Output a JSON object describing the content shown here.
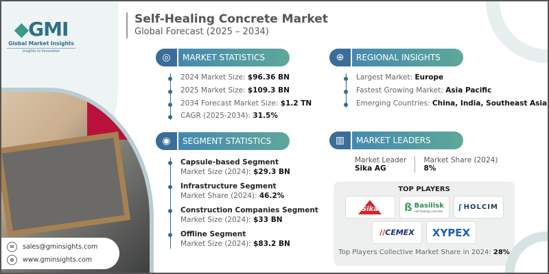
{
  "brand": {
    "logo_text": "GMI",
    "name": "Global Market Insights",
    "tagline": "Insights to Innovation"
  },
  "header": {
    "title": "Self-Healing Concrete Market",
    "subtitle": "Global Forecast (2025 – 2034)"
  },
  "market_statistics": {
    "label": "MARKET STATISTICS",
    "items": [
      {
        "label": "2024 Market Size: ",
        "value": "$96.36 BN"
      },
      {
        "label": "2025 Market Size: ",
        "value": "$109.3 BN"
      },
      {
        "label": "2034 Forecast Market Size: ",
        "value": "$1.2 TN"
      },
      {
        "label": "CAGR (2025-2034): ",
        "value": "31.5%"
      }
    ]
  },
  "regional_insights": {
    "label": "REGIONAL INSIGHTS",
    "items": [
      {
        "label": "Largest Market: ",
        "value": "Europe"
      },
      {
        "label": "Fastest Growing Market: ",
        "value": "Asia Pacific"
      },
      {
        "label": "Emerging Countries: ",
        "value": "China, India, Southeast Asia"
      }
    ]
  },
  "segment_statistics": {
    "label": "SEGMENT STATISTICS",
    "items": [
      {
        "title": "Capsule-based Segment",
        "label": "Market Size (2024): ",
        "value": "$29.3 BN"
      },
      {
        "title": "Infrastructure Segment",
        "label": "Market Share (2024): ",
        "value": "46.2%"
      },
      {
        "title": "Construction Companies Segment",
        "label": "Market Size (2024): ",
        "value": "$33 BN"
      },
      {
        "title": "Offline Segment",
        "label": "Market Size (2024): ",
        "value": "$83.2 BN"
      }
    ]
  },
  "market_leaders": {
    "label": "MARKET LEADERS",
    "leader_label": "Market Leader",
    "leader": "Sika AG",
    "share_label": "Market Share (2024)",
    "share": "8%"
  },
  "top_players": {
    "title": "TOP PLAYERS",
    "logos": [
      "Sika",
      "Basilisk",
      "HOLCIM",
      "CEMEX",
      "XYPEX"
    ],
    "basilisk_tag": "self healing concrete",
    "footer_label": "Top Players Collective Market Share in 2024: ",
    "footer_value": "28%"
  },
  "contact": {
    "email": "sales@gminsights.com",
    "website": "www.gminsights.com"
  },
  "colors": {
    "accent": "#2e6f8e",
    "pill_start": "#3f83b3",
    "pill_end": "#5ea89a"
  }
}
